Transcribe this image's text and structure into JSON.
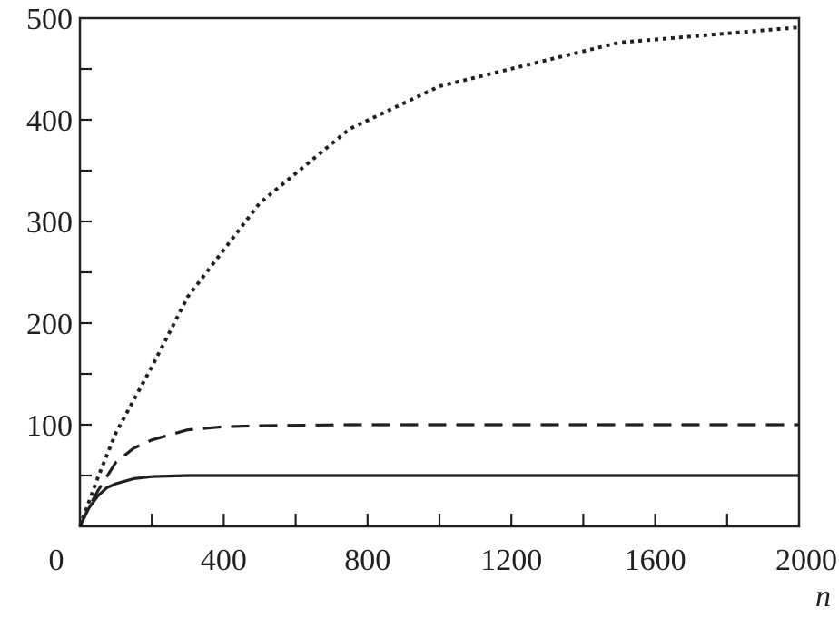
{
  "chart_data": {
    "type": "line",
    "title": "",
    "xlabel": "n",
    "ylabel": "",
    "xlim": [
      0,
      2000
    ],
    "ylim": [
      0,
      500
    ],
    "x_ticks": [
      0,
      400,
      800,
      1200,
      1600,
      2000
    ],
    "x_tick_labels": [
      "0",
      "400",
      "800",
      "1200",
      "1600",
      "2000"
    ],
    "x_minor_step": 200,
    "y_ticks": [
      100,
      200,
      300,
      400,
      500
    ],
    "y_tick_labels": [
      "100",
      "200",
      "300",
      "400",
      "500"
    ],
    "y_minor_step": 50,
    "grid": false,
    "series": [
      {
        "name": "dotted",
        "style": "dotted",
        "color": "#231f20",
        "x": [
          0,
          50,
          100,
          200,
          300,
          500,
          750,
          1000,
          1500,
          2000
        ],
        "y": [
          0,
          48,
          92,
          157,
          226,
          318,
          391,
          433,
          476,
          491
        ]
      },
      {
        "name": "dashed",
        "style": "dashed",
        "color": "#231f20",
        "x": [
          0,
          25,
          50,
          100,
          150,
          200,
          300,
          400,
          500,
          750,
          1000,
          2000
        ],
        "y": [
          0,
          19,
          35,
          63,
          77,
          85,
          95,
          98,
          99,
          100,
          100,
          100
        ]
      },
      {
        "name": "solid",
        "style": "solid",
        "color": "#231f20",
        "x": [
          0,
          25,
          50,
          75,
          100,
          150,
          200,
          300,
          500,
          1000,
          2000
        ],
        "y": [
          0,
          18,
          30,
          38,
          42,
          47,
          49,
          50,
          50,
          50,
          50
        ]
      }
    ]
  }
}
